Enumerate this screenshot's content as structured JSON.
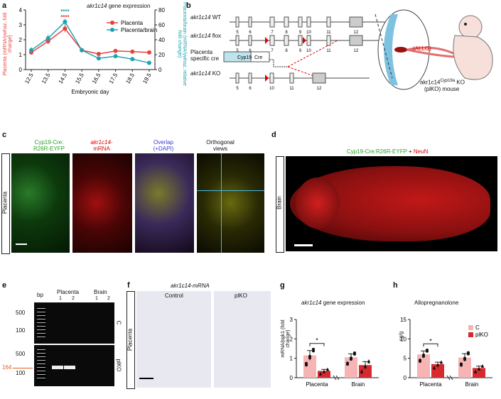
{
  "panel_a": {
    "letter": "a",
    "title_gene": "akr1c14",
    "title_rest": " gene expression",
    "ylabel_left": "Placenta (mRNA/ywhaz, fold change)",
    "ylabel_right": "Placenta/brain (mRNA/ywhaz, relative fold change)",
    "xlabel": "Embryonic day",
    "stars_blue": "****",
    "stars_red": "****",
    "colors": {
      "placenta": "#e8423c",
      "ratio": "#1fa3b0"
    },
    "chart_data": {
      "type": "line",
      "x": [
        "12.5",
        "13.5",
        "14.5",
        "15.5",
        "16.5",
        "17.5",
        "18.5",
        "19.5"
      ],
      "ylim_left": [
        0,
        4
      ],
      "ylim_right": [
        0,
        80
      ],
      "yticks_left": [
        "0",
        "1",
        "2",
        "3",
        "4"
      ],
      "yticks_right": [
        "0",
        "20",
        "40",
        "60",
        "80"
      ],
      "series": [
        {
          "name": "Placenta",
          "axis": "left",
          "values": [
            1.15,
            1.9,
            2.75,
            1.3,
            1.05,
            1.25,
            1.2,
            1.15
          ],
          "errors": [
            0.15,
            0.2,
            0.25,
            0.15,
            0.1,
            0.1,
            0.12,
            0.12
          ]
        },
        {
          "name": "Placenta/brain",
          "axis": "right",
          "values": [
            26,
            42,
            64,
            26,
            15,
            18,
            14,
            9
          ],
          "errors": [
            4,
            5,
            4,
            3,
            2,
            2,
            2,
            1
          ]
        }
      ]
    }
  },
  "panel_b": {
    "letter": "b",
    "wt_gene": "akr1c14",
    "wt_rest": " WT",
    "flox_gene": "akr1c14",
    "flox_rest": " flox",
    "cre_label_1": "Placenta",
    "cre_label_2": "specific cre",
    "cyp19": "Cyp19",
    "cre": "Cre",
    "ko_gene": "akr1c14",
    "ko_rest": " KO",
    "exons_wt": [
      "5",
      "6",
      "7",
      "8",
      "9",
      "10",
      "11",
      "12"
    ],
    "exons_ko": [
      "5",
      "6",
      "10",
      "11",
      "12"
    ],
    "allo": "(ALLO)",
    "mouse_line_1": "akr1c14",
    "mouse_sup": "Cyp19a",
    "mouse_ko": " KO",
    "mouse_line_2": "(plKO) mouse"
  },
  "panel_c": {
    "letter": "c",
    "col1_line1": "Cyp19-Cre:",
    "col1_line2": "R26R-EYFP",
    "col2_line1": "akr1c14-",
    "col2_line2": "mRNA",
    "col3_line1": "Overlap",
    "col3_line2": "(+DAPI)",
    "col4_line1": "Orthogonal",
    "col4_line2": "views",
    "side_label": "Placenta"
  },
  "panel_d": {
    "letter": "d",
    "label_green": "Cyp19-Cre:R26R-EYFP",
    "label_plus": " + ",
    "label_red": "NeuN",
    "side_label": "Brain"
  },
  "panel_e": {
    "letter": "e",
    "bp": "bp",
    "placenta": "Placenta",
    "brain": "Brain",
    "lanes": [
      "1",
      "2",
      "1",
      "2"
    ],
    "markers": [
      "500",
      "100",
      "500",
      "100"
    ],
    "band_164": "164",
    "row_c": "C",
    "row_plko": "plKO"
  },
  "panel_f": {
    "letter": "f",
    "title": "akr1c14-mRNA",
    "control": "Control",
    "plko": "plKO",
    "side_label": "Placenta"
  },
  "panel_g": {
    "letter": "g",
    "title_gene": "akr1c14",
    "title_rest": " gene expression",
    "ylabel": "mRNA/pgk1 (fold change)",
    "sig": "*",
    "chart_data": {
      "type": "bar",
      "categories": [
        "Placenta",
        "Brain"
      ],
      "ylim": [
        0,
        3
      ],
      "yticks": [
        "0",
        "1",
        "2",
        "3"
      ],
      "series": [
        {
          "name": "C",
          "values": [
            1.15,
            1.05
          ],
          "errors": [
            0.25,
            0.18
          ]
        },
        {
          "name": "plKO",
          "values": [
            0.35,
            0.65
          ],
          "errors": [
            0.08,
            0.18
          ]
        }
      ]
    }
  },
  "panel_h": {
    "letter": "h",
    "title": "Allopregnanolone",
    "ylabel": "ng/g",
    "sig": "*",
    "legend_c": "C",
    "legend_plko": "plKO",
    "chart_data": {
      "type": "bar",
      "categories": [
        "Placenta",
        "Brain"
      ],
      "ylim": [
        0,
        15
      ],
      "yticks": [
        "0",
        "5",
        "10",
        "15"
      ],
      "series": [
        {
          "name": "C",
          "values": [
            6.0,
            5.2
          ],
          "errors": [
            0.9,
            1.0
          ]
        },
        {
          "name": "plKO",
          "values": [
            3.5,
            2.5
          ],
          "errors": [
            0.5,
            0.5
          ]
        }
      ]
    }
  }
}
